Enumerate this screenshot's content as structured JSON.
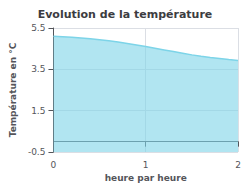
{
  "chart_data": {
    "type": "area",
    "title": "Evolution de la température",
    "xlabel": "heure par heure",
    "ylabel": "Température en °C",
    "x": [
      0,
      0.1,
      0.2,
      0.3,
      0.4,
      0.5,
      0.6,
      0.7,
      0.8,
      0.9,
      1.0,
      1.1,
      1.2,
      1.3,
      1.4,
      1.5,
      1.6,
      1.7,
      1.8,
      1.9,
      2.0
    ],
    "values": [
      5.1,
      5.08,
      5.05,
      5.02,
      4.98,
      4.93,
      4.88,
      4.82,
      4.75,
      4.68,
      4.6,
      4.52,
      4.44,
      4.36,
      4.28,
      4.2,
      4.13,
      4.07,
      4.02,
      3.97,
      3.93
    ],
    "color": "#7dd4e8",
    "xlim": [
      0,
      2
    ],
    "xticks": [
      0,
      1,
      2
    ],
    "ylim": [
      -0.5,
      5.5
    ],
    "yticks": [
      -0.5,
      1.5,
      3.5,
      5.5
    ],
    "grid": true
  }
}
